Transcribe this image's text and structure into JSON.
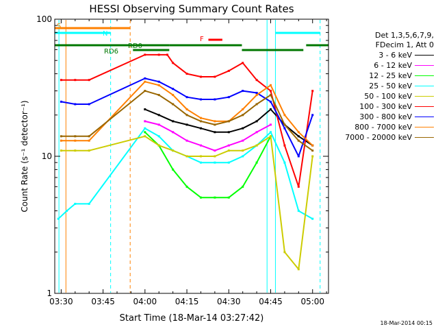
{
  "chart_data": {
    "type": "line",
    "title": "HESSI Observing Summary Count Rates",
    "xlabel": "Start Time (18-Mar-14 03:27:42)",
    "ylabel": "Count Rate (s⁻¹ detector⁻¹)",
    "ylim": [
      1,
      100
    ],
    "yscale": "log",
    "xlim_minutes": [
      0,
      98
    ],
    "x_tick_labels": [
      "03:30",
      "03:45",
      "04:00",
      "04:15",
      "04:30",
      "04:45",
      "05:00"
    ],
    "y_tick_labels": [
      "1",
      "10",
      "100"
    ],
    "grid": false,
    "legend_position": "right",
    "legend_header": [
      "Det 1,3,5,6,7,9,",
      "FDecim 1, Att 0"
    ],
    "series": [
      {
        "name": "3 - 6 keV",
        "color": "#000000",
        "x": [
          "04:00",
          "04:05",
          "04:10",
          "04:15",
          "04:20",
          "04:25",
          "04:30",
          "04:35",
          "04:40",
          "04:45",
          "04:50",
          "04:55",
          "05:00"
        ],
        "y": [
          22,
          20,
          18,
          17,
          16,
          15,
          15,
          16,
          18,
          22,
          17,
          14,
          12
        ]
      },
      {
        "name": "6 - 12 keV",
        "color": "#ff00ff",
        "x": [
          "04:00",
          "04:05",
          "04:10",
          "04:15",
          "04:20",
          "04:25",
          "04:30",
          "04:35",
          "04:40",
          "04:45"
        ],
        "y": [
          18,
          17,
          15,
          13,
          12,
          11,
          12,
          13,
          15,
          17
        ]
      },
      {
        "name": "12 - 25 keV",
        "color": "#00ff00",
        "x": [
          "04:00",
          "04:05",
          "04:10",
          "04:15",
          "04:20",
          "04:25",
          "04:30",
          "04:35",
          "04:40",
          "04:45"
        ],
        "y": [
          15,
          12,
          8,
          6,
          5,
          5,
          5,
          6,
          9,
          14
        ]
      },
      {
        "name": "25 - 50 keV",
        "color": "#00ffff",
        "x": [
          "03:29",
          "03:32",
          "03:35",
          "03:40",
          "04:00",
          "04:05",
          "04:10",
          "04:15",
          "04:20",
          "04:25",
          "04:30",
          "04:35",
          "04:40",
          "04:45",
          "04:50",
          "04:55",
          "05:00"
        ],
        "y": [
          3.5,
          4,
          4.5,
          4.5,
          16,
          14,
          11,
          10,
          9,
          9,
          9,
          10,
          12,
          15,
          9,
          4,
          3.5
        ]
      },
      {
        "name": "50 - 100 keV",
        "color": "#cccc00",
        "x": [
          "03:30",
          "03:35",
          "03:40",
          "04:00",
          "04:05",
          "04:10",
          "04:15",
          "04:20",
          "04:25",
          "04:30",
          "04:35",
          "04:40",
          "04:45",
          "04:50",
          "04:55",
          "05:00"
        ],
        "y": [
          11,
          11,
          11,
          14,
          12,
          11,
          10,
          10,
          10,
          11,
          11,
          12,
          14,
          2,
          1.5,
          10
        ]
      },
      {
        "name": "100 - 300 keV",
        "color": "#ff0000",
        "x": [
          "03:30",
          "03:35",
          "03:40",
          "04:00",
          "04:05",
          "04:08",
          "04:10",
          "04:15",
          "04:20",
          "04:25",
          "04:30",
          "04:35",
          "04:40",
          "04:45",
          "04:50",
          "04:55",
          "05:00"
        ],
        "y": [
          36,
          36,
          36,
          55,
          55,
          55,
          48,
          40,
          38,
          38,
          42,
          48,
          36,
          30,
          12,
          6,
          30
        ]
      },
      {
        "name": "300 - 800 keV",
        "color": "#0000ff",
        "x": [
          "03:30",
          "03:35",
          "03:40",
          "04:00",
          "04:05",
          "04:10",
          "04:15",
          "04:20",
          "04:25",
          "04:30",
          "04:35",
          "04:40",
          "04:45",
          "04:50",
          "04:55",
          "05:00"
        ],
        "y": [
          25,
          24,
          24,
          37,
          35,
          31,
          27,
          26,
          26,
          27,
          30,
          29,
          25,
          16,
          10,
          20
        ]
      },
      {
        "name": "800 - 7000 keV",
        "color": "#ff8000",
        "x": [
          "03:30",
          "03:35",
          "03:40",
          "04:00",
          "04:05",
          "04:10",
          "04:15",
          "04:20",
          "04:25",
          "04:30",
          "04:35",
          "04:40",
          "04:45",
          "04:50",
          "04:55",
          "05:00"
        ],
        "y": [
          13,
          13,
          13,
          35,
          33,
          28,
          22,
          19,
          18,
          18,
          22,
          28,
          33,
          20,
          15,
          12
        ]
      },
      {
        "name": "7000 - 20000 keV",
        "color": "#996600",
        "x": [
          "03:30",
          "03:35",
          "03:40",
          "04:00",
          "04:05",
          "04:10",
          "04:15",
          "04:20",
          "04:25",
          "04:30",
          "04:35",
          "04:40",
          "04:45",
          "04:50",
          "04:55",
          "05:00"
        ],
        "y": [
          14,
          14,
          14,
          30,
          28,
          24,
          20,
          18,
          17,
          18,
          20,
          24,
          28,
          17,
          13,
          11
        ]
      }
    ],
    "annotations": [
      {
        "label": "S",
        "color": "#ff8000"
      },
      {
        "label": "N",
        "color": "#00ffff"
      },
      {
        "label": "RD0",
        "color": "#007700"
      },
      {
        "label": "RD6",
        "color": "#007700"
      },
      {
        "label": "F",
        "color": "#ff0000"
      }
    ]
  },
  "footer": {
    "timestamp": "18-Mar-2014 00:15"
  }
}
